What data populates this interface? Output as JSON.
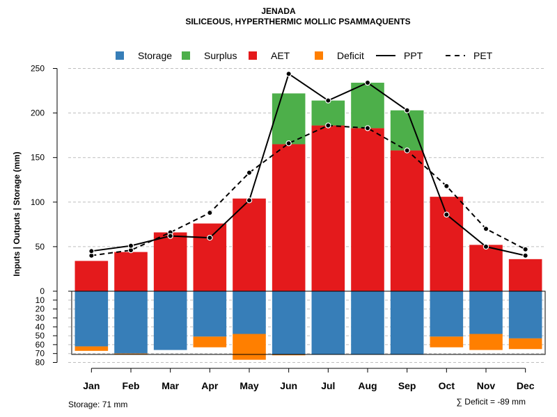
{
  "chart_data": {
    "type": "bar",
    "title": "JENADA",
    "subtitle": "SILICEOUS, HYPERTHERMIC MOLLIC PSAMMAQUENTS",
    "ylabel": "Inputs | Outputs | Storage    (mm)",
    "ylim_upper": [
      0,
      250
    ],
    "ylim_lower": [
      0,
      80
    ],
    "upper_ticks": [
      "0",
      "50",
      "100",
      "150",
      "200",
      "250"
    ],
    "lower_ticks": [
      "10",
      "20",
      "30",
      "40",
      "50",
      "60",
      "70",
      "80"
    ],
    "grid": true,
    "categories": [
      "Jan",
      "Feb",
      "Mar",
      "Apr",
      "May",
      "Jun",
      "Jul",
      "Aug",
      "Sep",
      "Oct",
      "Nov",
      "Dec"
    ],
    "legend": [
      {
        "key": "storage",
        "label": "Storage",
        "kind": "box",
        "color": "#377eb8"
      },
      {
        "key": "surplus",
        "label": "Surplus",
        "kind": "box",
        "color": "#4daf4a"
      },
      {
        "key": "aet",
        "label": "AET",
        "kind": "box",
        "color": "#e41a1c"
      },
      {
        "key": "deficit",
        "label": "Deficit",
        "kind": "box",
        "color": "#ff7f00"
      },
      {
        "key": "ppt",
        "label": "PPT",
        "kind": "line",
        "color": "#000000"
      },
      {
        "key": "pet",
        "label": "PET",
        "kind": "dash",
        "color": "#000000"
      }
    ],
    "series": [
      {
        "name": "AET",
        "values": [
          34,
          44,
          66,
          76,
          104,
          165,
          186,
          183,
          158,
          106,
          52,
          36
        ]
      },
      {
        "name": "Surplus",
        "values": [
          0,
          0,
          0,
          0,
          0,
          57,
          28,
          51,
          45,
          0,
          0,
          0
        ]
      },
      {
        "name": "Storage",
        "values": [
          62,
          70,
          66,
          51,
          48,
          71,
          71,
          71,
          71,
          51,
          48,
          53
        ]
      },
      {
        "name": "Deficit",
        "values": [
          5,
          1,
          0,
          12,
          29,
          1,
          0,
          0,
          0,
          12,
          18,
          12
        ]
      },
      {
        "name": "PPT",
        "values": [
          45,
          51,
          62,
          60,
          102,
          244,
          214,
          234,
          203,
          86,
          50,
          40
        ]
      },
      {
        "name": "PET",
        "values": [
          40,
          46,
          66,
          88,
          133,
          166,
          186,
          183,
          158,
          118,
          70,
          47
        ]
      }
    ],
    "storage_label": "Storage: 71 mm",
    "deficit_label": "∑ Deficit = -89 mm"
  }
}
